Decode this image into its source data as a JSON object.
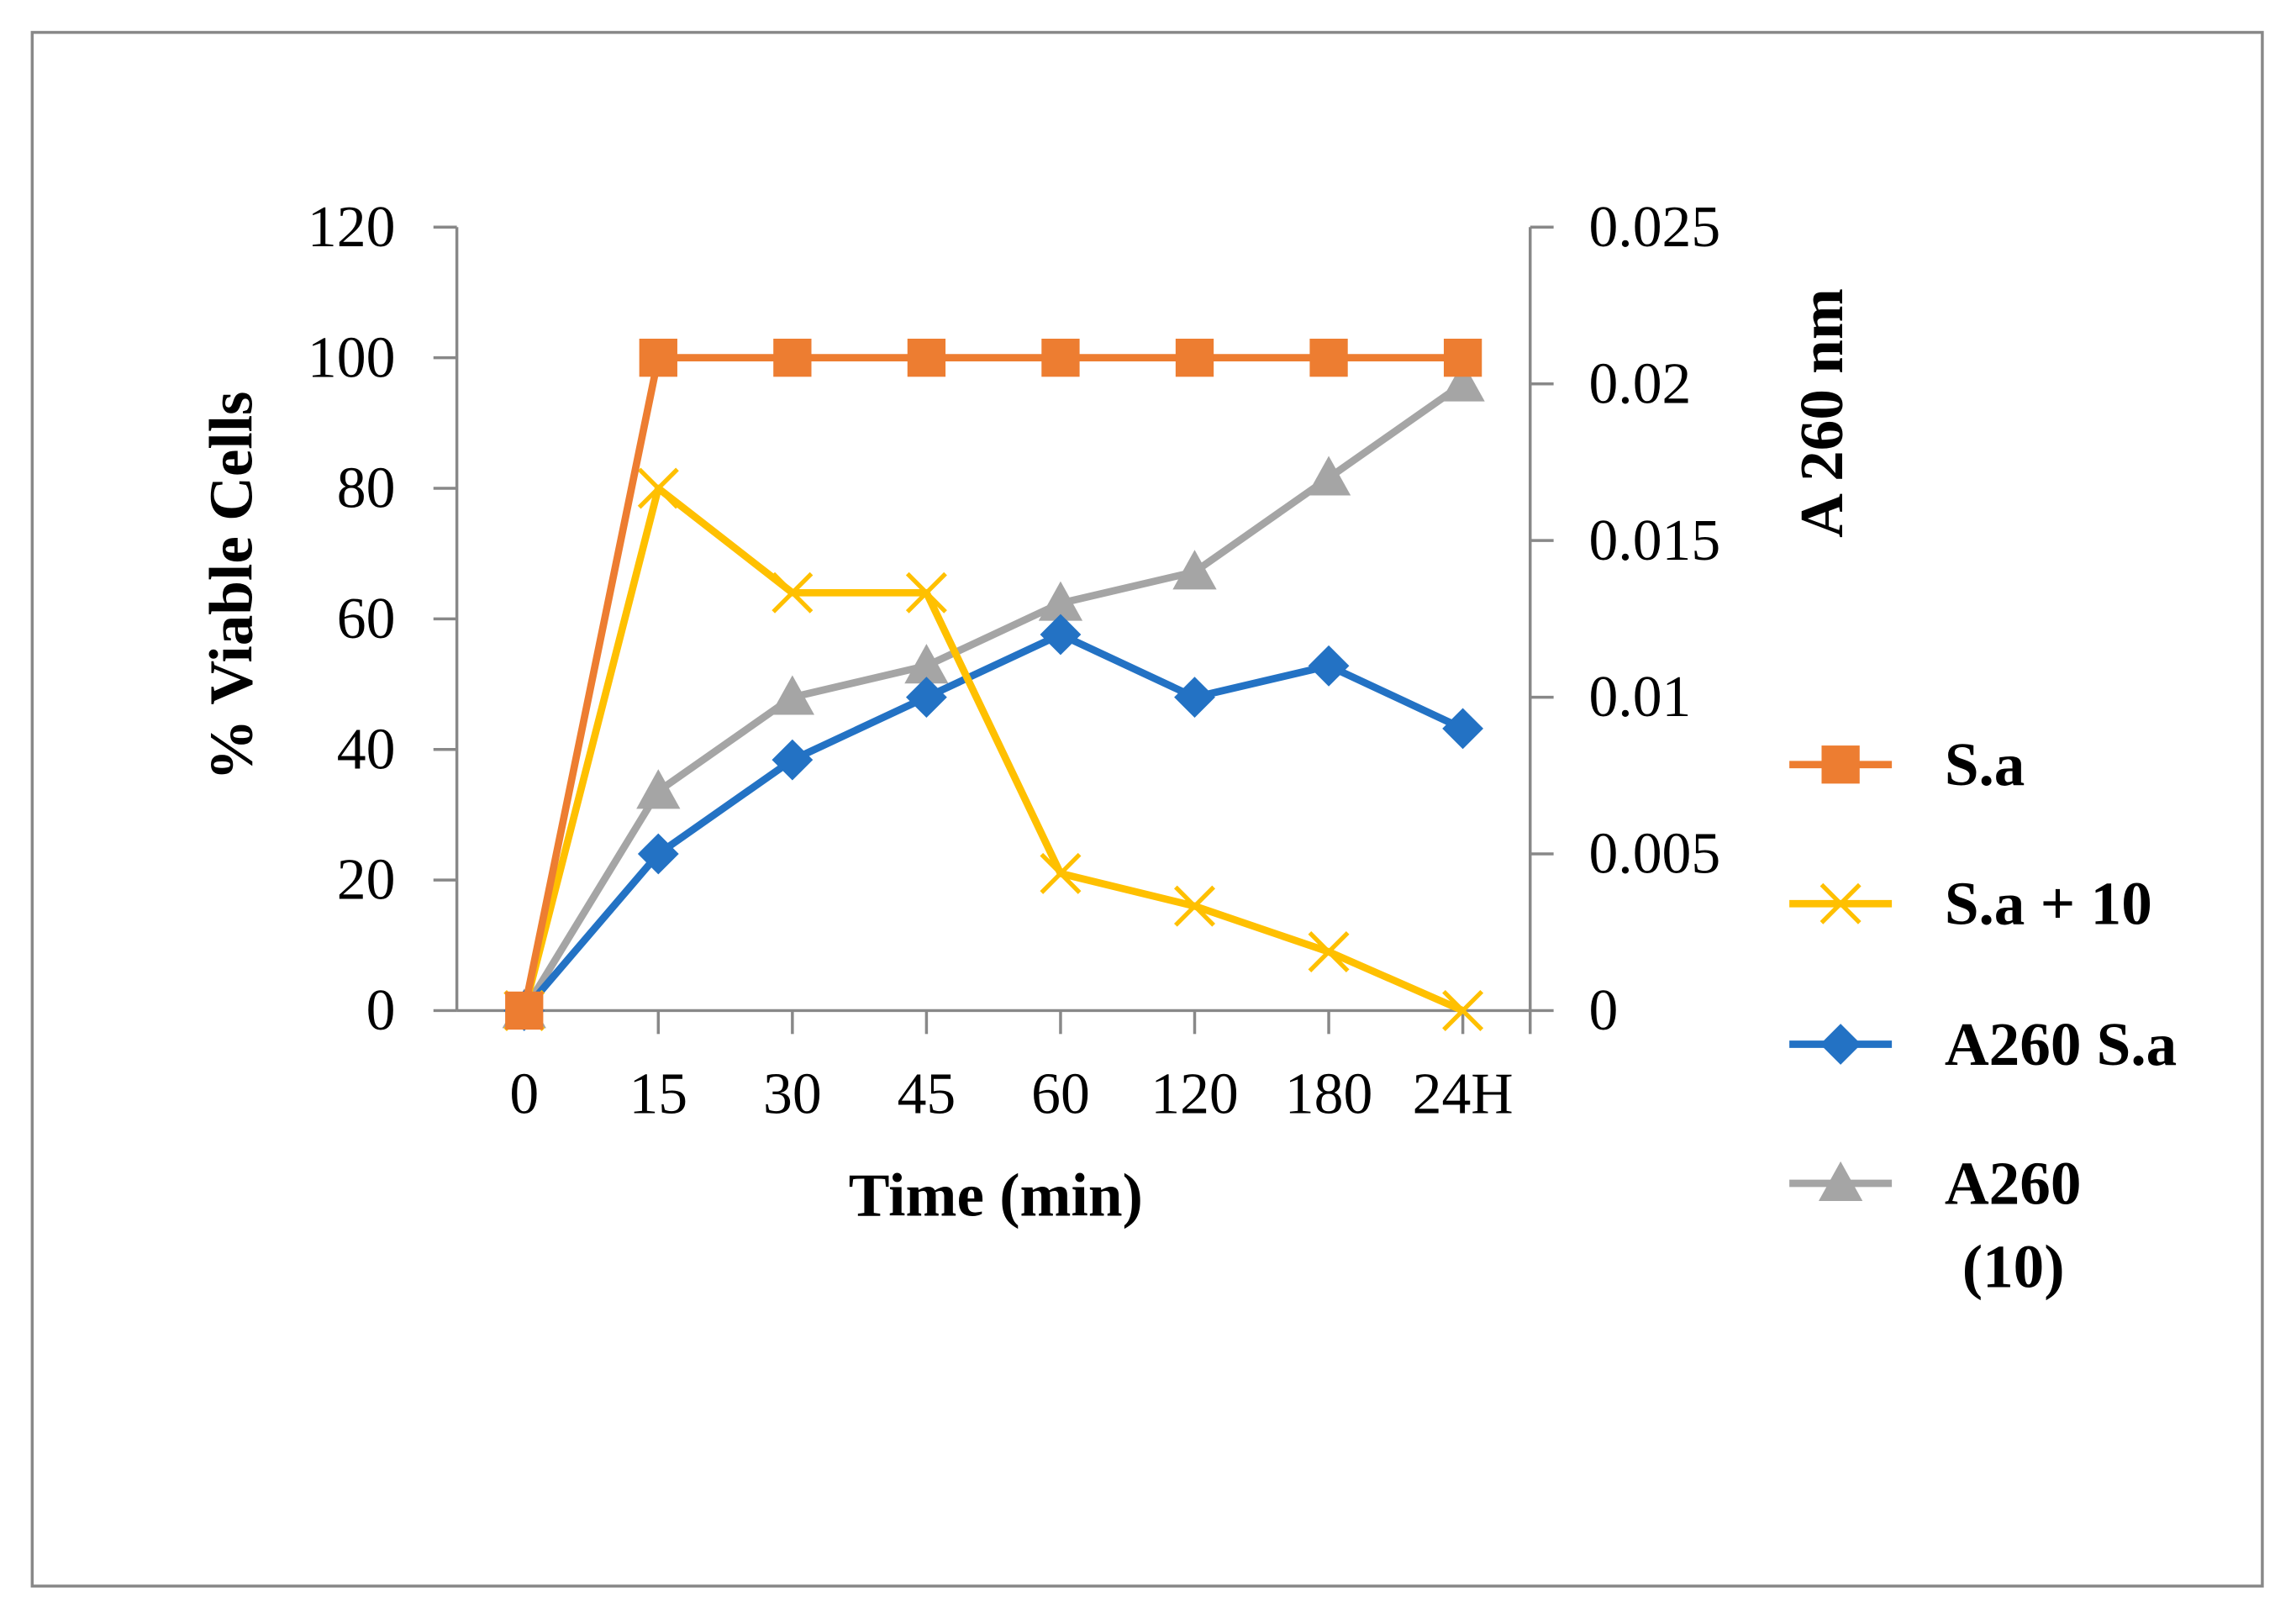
{
  "chart_data": {
    "type": "line",
    "title": "",
    "xlabel": "Time (min)",
    "ylabel": "% Viable Cells",
    "y2label": "A 260 nm",
    "categories": [
      "0",
      "15",
      "30",
      "45",
      "60",
      "120",
      "180",
      "24H"
    ],
    "ylim": [
      0,
      120
    ],
    "yticks": [
      "0",
      "20",
      "40",
      "60",
      "80",
      "100",
      "120"
    ],
    "y2lim": [
      0,
      0.025
    ],
    "y2ticks": [
      "0",
      "0.005",
      "0.01",
      "0.015",
      "0.02",
      "0.025"
    ],
    "grid": false,
    "legend_position": "right",
    "series": [
      {
        "name": "S.a",
        "axis": "left",
        "marker": "square",
        "color": "#ED7D31",
        "values": [
          0,
          100,
          100,
          100,
          100,
          100,
          100,
          100
        ]
      },
      {
        "name": "S.a + 10",
        "axis": "left",
        "marker": "x",
        "color": "#FFC000",
        "values": [
          0,
          80,
          64,
          64,
          21,
          16,
          9,
          0
        ]
      },
      {
        "name": "A260 S.a",
        "axis": "right",
        "marker": "diamond",
        "color": "#2372C4",
        "values": [
          0,
          0.005,
          0.008,
          0.01,
          0.012,
          0.01,
          0.011,
          0.009
        ]
      },
      {
        "name": "A260 (10)",
        "legend_lines": [
          "A260",
          "(10)"
        ],
        "axis": "right",
        "marker": "triangle",
        "color": "#A5A5A5",
        "values": [
          0,
          0.007,
          0.01,
          0.011,
          0.013,
          0.014,
          0.017,
          0.02
        ]
      }
    ]
  }
}
